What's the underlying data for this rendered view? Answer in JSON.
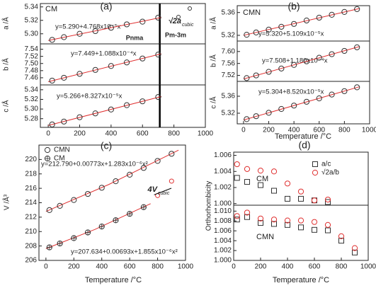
{
  "chart_data": [
    {
      "type": "scatter",
      "panel": "(a)",
      "inner_label": "CM",
      "ylabel": "a /Å",
      "equation": "y=5.290+4.768x10⁻⁵x",
      "x": [
        25,
        100,
        200,
        300,
        400,
        500,
        600,
        700
      ],
      "values": [
        5.291,
        5.295,
        5.3,
        5.304,
        5.309,
        5.314,
        5.318,
        5.324
      ],
      "color": "#333333",
      "marker": "circle",
      "xlim": [
        -50,
        1000
      ],
      "ylim": [
        5.285,
        5.345
      ],
      "yticks": [
        {
          "value": 5.3,
          "label": "5.30"
        },
        5.32,
        5.34
      ],
      "fit": {
        "x": [
          0,
          720
        ],
        "values": [
          5.29,
          5.3243
        ],
        "color": "#e03030"
      },
      "vline": 710,
      "annotations": [
        "Pnma",
        "Pm-3m"
      ],
      "cubic_label": "√2a",
      "cubic_sub": "cubic"
    },
    {
      "type": "scatter",
      "ylabel": "b /Å",
      "equation": "y=7.449+1.088x10⁻⁴x",
      "x": [
        25,
        100,
        200,
        300,
        400,
        500,
        600,
        700
      ],
      "values": [
        7.452,
        7.46,
        7.471,
        7.482,
        7.493,
        7.503,
        7.514,
        7.525
      ],
      "color": "#333333",
      "marker": "circle",
      "xlim": [
        -50,
        1000
      ],
      "ylim": [
        7.44,
        7.555
      ],
      "yticks": [
        7.46,
        7.48,
        {
          "value": 7.5,
          "label": "7.50"
        },
        7.52,
        7.54
      ],
      "fit": {
        "x": [
          0,
          720
        ],
        "values": [
          7.449,
          7.5273
        ],
        "color": "#e03030"
      },
      "vline": 710
    },
    {
      "type": "scatter",
      "ylabel": "c /Å",
      "equation": "y=5.266+8.327x10⁻⁵x",
      "x": [
        25,
        100,
        200,
        300,
        400,
        500,
        600,
        700
      ],
      "values": [
        5.268,
        5.274,
        5.283,
        5.291,
        5.299,
        5.308,
        5.316,
        5.325
      ],
      "color": "#333333",
      "marker": "circle",
      "xlim": [
        -50,
        1000
      ],
      "ylim": [
        5.262,
        5.35
      ],
      "yticks": [
        5.28,
        {
          "value": 5.3,
          "label": "5.30"
        },
        5.32,
        5.34
      ],
      "xticks": [
        0,
        200,
        400,
        600,
        800,
        1000
      ],
      "fit": {
        "x": [
          0,
          720
        ],
        "values": [
          5.266,
          5.326
        ],
        "color": "#e03030"
      },
      "vline": 710
    },
    {
      "type": "scatter",
      "panel": "(b)",
      "inner_label": "CMN",
      "ylabel": "a /Å",
      "equation": "y=5.320+5.109x10⁻⁵x",
      "x": [
        25,
        100,
        200,
        300,
        400,
        500,
        600,
        700,
        800,
        900
      ],
      "values": [
        5.321,
        5.325,
        5.33,
        5.335,
        5.34,
        5.346,
        5.351,
        5.356,
        5.361,
        5.366
      ],
      "color": "#333333",
      "marker": "circle",
      "xlim": [
        -50,
        1000
      ],
      "ylim": [
        5.31,
        5.372
      ],
      "yticks": [
        5.32,
        5.36
      ],
      "fit": {
        "x": [
          0,
          920
        ],
        "values": [
          5.32,
          5.367
        ],
        "color": "#e03030"
      }
    },
    {
      "type": "scatter",
      "ylabel": "b /Å",
      "equation": "y=7.508+1.180x10⁻⁴x",
      "x": [
        25,
        100,
        200,
        300,
        400,
        500,
        600,
        700,
        800,
        900
      ],
      "values": [
        7.511,
        7.52,
        7.532,
        7.543,
        7.555,
        7.567,
        7.579,
        7.591,
        7.602,
        7.614
      ],
      "color": "#333333",
      "marker": "circle",
      "xlim": [
        -50,
        1000
      ],
      "ylim": [
        7.5,
        7.635
      ],
      "yticks": [
        7.52,
        7.56,
        {
          "value": 7.6,
          "label": "7.60"
        }
      ],
      "fit": {
        "x": [
          0,
          920
        ],
        "values": [
          7.508,
          7.6166
        ],
        "color": "#e03030"
      }
    },
    {
      "type": "scatter",
      "ylabel": "c /Å",
      "equation": "y=5.304+8.520x10⁻⁵x",
      "xlabel": "Temperature /°C",
      "x": [
        25,
        100,
        200,
        300,
        400,
        500,
        600,
        700,
        800,
        900
      ],
      "values": [
        5.306,
        5.313,
        5.321,
        5.33,
        5.338,
        5.347,
        5.355,
        5.364,
        5.372,
        5.381
      ],
      "color": "#333333",
      "marker": "circle",
      "xlim": [
        -50,
        1000
      ],
      "ylim": [
        5.295,
        5.395
      ],
      "yticks": [
        5.32,
        5.36
      ],
      "xticks": [
        0,
        200,
        400,
        600,
        800,
        1000
      ],
      "fit": {
        "x": [
          0,
          920
        ],
        "values": [
          5.304,
          5.3824
        ],
        "color": "#e03030"
      }
    },
    {
      "type": "scatter",
      "panel": "(c)",
      "ylabel": "V /Å³",
      "xlabel": "Temperature /°C",
      "xlim": [
        -50,
        1000
      ],
      "ylim": [
        206,
        222
      ],
      "yticks": [
        206,
        208,
        210,
        212,
        214,
        216,
        218,
        220
      ],
      "xticks": [
        0,
        200,
        400,
        600,
        800,
        1000
      ],
      "series": [
        {
          "name": "CMN",
          "color": "#333333",
          "marker": "circle",
          "x": [
            25,
            100,
            200,
            300,
            400,
            500,
            600,
            700,
            800,
            900
          ],
          "values": [
            212.98,
            213.57,
            214.38,
            215.22,
            216.08,
            216.98,
            217.89,
            218.83,
            219.8,
            220.79
          ],
          "equation": "y=212.790+0.00773x+1.283x10⁻⁶x²",
          "fit": {
            "x": [
              0,
              450,
              950
            ],
            "values": [
              212.79,
              216.528,
              221.291
            ],
            "color": "#e03030"
          }
        },
        {
          "name": "CM",
          "color": "#333333",
          "marker": "crossed",
          "x": [
            25,
            100,
            200,
            300,
            400,
            500,
            600,
            700
          ],
          "values": [
            207.81,
            208.35,
            209.09,
            209.88,
            210.7,
            211.57,
            212.46,
            213.39
          ],
          "equation": "y=207.634+0.00693x+1.855x10⁻⁶x²",
          "fit": {
            "x": [
              0,
              350,
              750
            ],
            "values": [
              207.634,
              210.287,
              213.875
            ],
            "color": "#e03030"
          }
        }
      ],
      "cubic_points": {
        "x": [
          800,
          900
        ],
        "values": [
          215.0,
          217.0
        ],
        "color": "#e03030"
      },
      "cubic_label": "4V",
      "cubic_sub": "cubic"
    },
    {
      "type": "scatter",
      "panel": "(d)",
      "inner_label": "CM",
      "ylabel": "Orthorhombicity",
      "xlim": [
        0,
        1000
      ],
      "ylim": [
        0.9998,
        1.0064
      ],
      "yticks": [
        {
          "value": 1.0,
          "label": "1.000"
        },
        {
          "value": 1.002,
          "label": "1.002"
        },
        {
          "value": 1.004,
          "label": "1.004"
        },
        {
          "value": 1.006,
          "label": "1.006"
        }
      ],
      "series": [
        {
          "name": "a/c",
          "color": "#333333",
          "marker": "square",
          "x": [
            25,
            100,
            200,
            300,
            400,
            500,
            600,
            700
          ],
          "values": [
            1.0032,
            1.0027,
            1.0023,
            1.0016,
            1.0006,
            1.0006,
            1.0004,
            1.0002
          ]
        },
        {
          "name": "√2a/b",
          "color": "#e03030",
          "marker": "circle",
          "x": [
            25,
            100,
            200,
            300,
            400,
            500,
            600,
            700
          ],
          "values": [
            1.0049,
            1.0043,
            1.0041,
            1.004,
            1.0025,
            1.0015,
            1.0004,
            1.0005
          ]
        }
      ]
    },
    {
      "type": "scatter",
      "inner_label": "CMN",
      "xlabel": "Temperature /°C",
      "xlim": [
        0,
        1000
      ],
      "ylim": [
        1.0,
        1.0112
      ],
      "yticks": [
        {
          "value": 1.0,
          "label": "1.000"
        },
        {
          "value": 1.002,
          "label": "1.002"
        },
        {
          "value": 1.004,
          "label": "1.004"
        },
        {
          "value": 1.006,
          "label": "1.006"
        },
        {
          "value": 1.008,
          "label": "1.008"
        },
        {
          "value": 1.01,
          "label": "1.010"
        }
      ],
      "xticks": [
        0,
        200,
        400,
        600,
        800,
        1000
      ],
      "series": [
        {
          "color": "#333333",
          "marker": "square",
          "x": [
            25,
            100,
            200,
            300,
            400,
            500,
            600,
            700,
            800,
            900
          ],
          "values": [
            1.0083,
            1.0088,
            1.0076,
            1.0074,
            1.0072,
            1.0067,
            1.0062,
            1.0061,
            1.004,
            1.0016
          ]
        },
        {
          "color": "#e03030",
          "marker": "circle",
          "x": [
            25,
            100,
            200,
            300,
            400,
            500,
            600,
            700,
            800,
            900
          ],
          "values": [
            1.009,
            1.0097,
            1.0085,
            1.0083,
            1.0081,
            1.0081,
            1.0078,
            1.0072,
            1.0049,
            1.0025
          ]
        }
      ]
    }
  ]
}
